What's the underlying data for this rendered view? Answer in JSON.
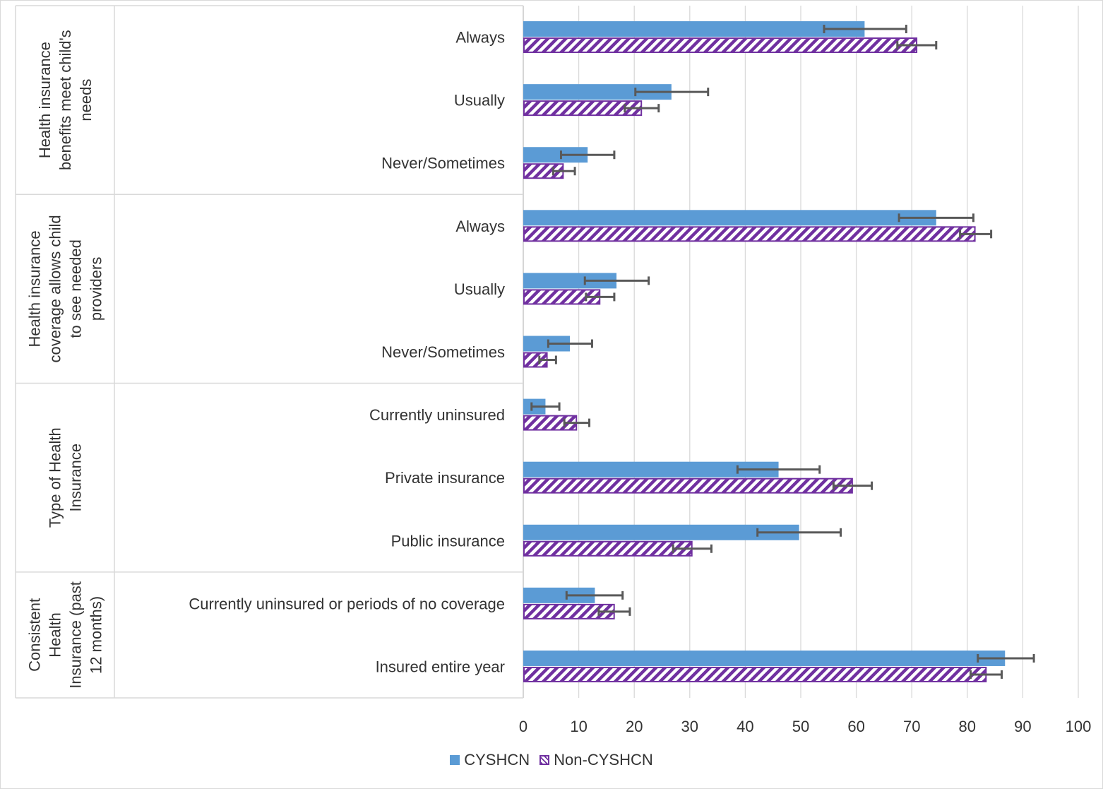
{
  "chart_data": {
    "type": "bar",
    "orientation": "horizontal",
    "grouped_categories": [
      {
        "group": "Health insurance benefits meet child's needs",
        "group_lines": [
          "Health insurance",
          "benefits meet child's",
          "needs"
        ],
        "categories": [
          "Always",
          "Usually",
          "Never/Sometimes"
        ]
      },
      {
        "group": "Health insurance coverage allows child to see needed providers",
        "group_lines": [
          "Health insurance",
          "coverage allows child",
          "to see needed",
          "providers"
        ],
        "categories": [
          "Always",
          "Usually",
          "Never/Sometimes"
        ]
      },
      {
        "group": "Type of Health Insurance",
        "group_lines": [
          "Type of Health",
          "Insurance"
        ],
        "categories": [
          "Currently uninsured",
          "Private insurance",
          "Public insurance"
        ]
      },
      {
        "group": "Consistent Health Insurance (past 12 months)",
        "group_lines": [
          "Consistent",
          "Health",
          "Insurance (past",
          "12 months)"
        ],
        "categories": [
          "Currently uninsured or periods of no coverage",
          "Insured entire year"
        ]
      }
    ],
    "series": [
      {
        "name": "CYSHCN",
        "color": "#5b9bd5",
        "pattern": "solid",
        "values": [
          61.5,
          26.7,
          11.6,
          74.4,
          16.8,
          8.4,
          4.0,
          46.0,
          49.7,
          12.9,
          86.8
        ],
        "error_low": [
          54.2,
          20.2,
          6.8,
          67.7,
          11.1,
          4.5,
          1.5,
          38.6,
          42.2,
          7.8,
          81.9
        ],
        "error_high": [
          69.0,
          33.3,
          16.4,
          81.1,
          22.6,
          12.4,
          6.5,
          53.4,
          57.2,
          17.9,
          92.0
        ]
      },
      {
        "name": "Non-CYSHCN",
        "color": "#7030a0",
        "pattern": "diagonal-hatch",
        "values": [
          71.0,
          21.4,
          7.3,
          81.5,
          13.9,
          4.4,
          9.7,
          59.4,
          30.5,
          16.5,
          83.5
        ],
        "error_low": [
          67.4,
          18.3,
          5.4,
          78.7,
          11.3,
          2.9,
          7.4,
          55.9,
          27.0,
          13.6,
          80.6
        ],
        "error_high": [
          74.4,
          24.4,
          9.3,
          84.3,
          16.4,
          5.9,
          11.9,
          62.8,
          33.9,
          19.2,
          86.2
        ]
      }
    ],
    "xlim": [
      0,
      100
    ],
    "x_ticks": [
      0,
      10,
      20,
      30,
      40,
      50,
      60,
      70,
      80,
      90,
      100
    ],
    "grid": "vertical",
    "legend": "bottom-center",
    "title": "",
    "xlabel": "",
    "ylabel": ""
  }
}
